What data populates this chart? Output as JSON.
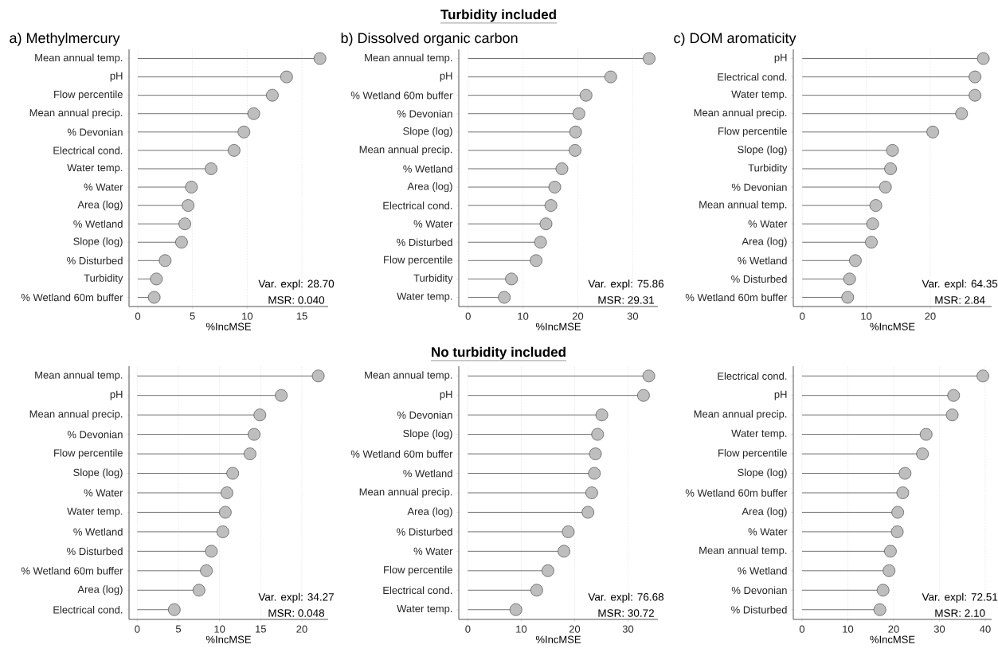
{
  "chart_data": [
    {
      "type": "lollipop",
      "orientation": "horizontal",
      "title": "a) Methylmercury",
      "xlabel": "%IncMSE",
      "color": "#bebebe",
      "marker": "circle",
      "grid": "x",
      "xlim": [
        -0.8,
        17.4
      ],
      "xticks": [
        0,
        5,
        10,
        15
      ],
      "categories": [
        "Mean annual temp.",
        "pH",
        "Flow percentile",
        "Mean annual precip.",
        "% Devonian",
        "Electrical cond.",
        "Water temp.",
        "% Water",
        "Area (log)",
        "% Wetland",
        "Slope (log)",
        "% Disturbed",
        "Turbidity",
        "% Wetland 60m buffer"
      ],
      "values": [
        16.65,
        13.6,
        12.3,
        10.6,
        9.7,
        8.8,
        6.7,
        4.9,
        4.6,
        4.3,
        4.0,
        2.5,
        1.7,
        1.5
      ],
      "annotations": [
        "Var. expl: 28.70",
        "MSR: 0.040"
      ]
    },
    {
      "type": "lollipop",
      "orientation": "horizontal",
      "title": "Turbidity included",
      "subtitle": "b) Dissolved organic carbon",
      "xlabel": "%IncMSE",
      "color": "#bebebe",
      "marker": "circle",
      "grid": "x",
      "xlim": [
        -1.7,
        34.6
      ],
      "xticks": [
        0,
        10,
        20,
        30
      ],
      "categories": [
        "Mean annual temp.",
        "pH",
        "% Wetland 60m buffer",
        "% Devonian",
        "Slope (log)",
        "Mean annual precip.",
        "% Wetland",
        "Area (log)",
        "Electrical cond.",
        "% Water",
        "% Disturbed",
        "Flow percentile",
        "Turbidity",
        "Water temp."
      ],
      "values": [
        33.0,
        26.0,
        21.5,
        20.2,
        19.6,
        19.5,
        17.1,
        15.8,
        15.1,
        14.2,
        13.2,
        12.4,
        7.9,
        6.6
      ],
      "annotations": [
        "Var. expl: 75.86",
        "MSR: 29.31"
      ]
    },
    {
      "type": "lollipop",
      "orientation": "horizontal",
      "title": "c) DOM aromaticity",
      "xlabel": "%IncMSE",
      "color": "#bebebe",
      "marker": "circle",
      "grid": "x",
      "xlim": [
        -1.4,
        29.6
      ],
      "xticks": [
        0,
        10,
        20
      ],
      "categories": [
        "pH",
        "Electrical cond.",
        "Water temp.",
        "Mean annual precip.",
        "Flow percentile",
        "Slope (log)",
        "Turbidity",
        "% Devonian",
        "Mean annual temp.",
        "% Water",
        "Area (log)",
        "% Wetland",
        "% Disturbed",
        "% Wetland 60m buffer"
      ],
      "values": [
        28.3,
        27.0,
        27.0,
        24.9,
        20.4,
        14.1,
        13.8,
        13.0,
        11.5,
        11.0,
        10.8,
        8.3,
        7.4,
        7.1
      ],
      "annotations": [
        "Var. expl: 64.35",
        "MSR: 2.84"
      ]
    },
    {
      "type": "lollipop",
      "orientation": "horizontal",
      "xlabel": "%IncMSE",
      "color": "#bebebe",
      "marker": "circle",
      "grid": "x",
      "xlim": [
        -1.0,
        23.2
      ],
      "xticks": [
        0,
        5,
        10,
        15,
        20
      ],
      "categories": [
        "Mean annual temp.",
        "pH",
        "Mean annual precip.",
        "% Devonian",
        "Flow percentile",
        "Slope (log)",
        "% Water",
        "Water temp.",
        "% Wetland",
        "% Disturbed",
        "% Wetland 60m buffer",
        "Area (log)",
        "Electrical cond."
      ],
      "values": [
        22.0,
        17.5,
        14.9,
        14.2,
        13.7,
        11.6,
        10.9,
        10.7,
        10.4,
        9.0,
        8.4,
        7.5,
        4.5
      ],
      "annotations": [
        "Var. expl: 34.27",
        "MSR: 0.048"
      ]
    },
    {
      "type": "lollipop",
      "orientation": "horizontal",
      "title": "No turbidity included",
      "xlabel": "%IncMSE",
      "color": "#bebebe",
      "marker": "circle",
      "grid": "x",
      "xlim": [
        -1.7,
        35.6
      ],
      "xticks": [
        0,
        10,
        20,
        30
      ],
      "categories": [
        "Mean annual temp.",
        "pH",
        "% Devonian",
        "Slope (log)",
        "% Wetland 60m buffer",
        "% Wetland",
        "Mean annual precip.",
        "Area (log)",
        "% Disturbed",
        "% Water",
        "Flow percentile",
        "Electrical cond.",
        "Water temp."
      ],
      "values": [
        33.9,
        32.9,
        25.1,
        24.3,
        23.9,
        23.7,
        23.2,
        22.5,
        18.8,
        18.0,
        15.0,
        12.9,
        9.0
      ],
      "annotations": [
        "Var. expl: 76.68",
        "MSR: 30.72"
      ]
    },
    {
      "type": "lollipop",
      "orientation": "horizontal",
      "xlabel": "%IncMSE",
      "color": "#bebebe",
      "marker": "circle",
      "grid": "x",
      "xlim": [
        -1.9,
        41.4
      ],
      "xticks": [
        0,
        10,
        20,
        30,
        40
      ],
      "categories": [
        "Electrical cond.",
        "pH",
        "Mean annual precip.",
        "Water temp.",
        "Flow percentile",
        "Slope (log)",
        "% Wetland 60m buffer",
        "Area (log)",
        "% Water",
        "Mean annual temp.",
        "% Wetland",
        "% Devonian",
        "% Disturbed"
      ],
      "values": [
        39.5,
        33.1,
        32.8,
        27.1,
        26.3,
        22.5,
        22.0,
        20.9,
        20.8,
        19.3,
        19.0,
        17.7,
        17.0
      ],
      "annotations": [
        "Var. expl: 72.51",
        "MSR: 2.10"
      ]
    }
  ]
}
